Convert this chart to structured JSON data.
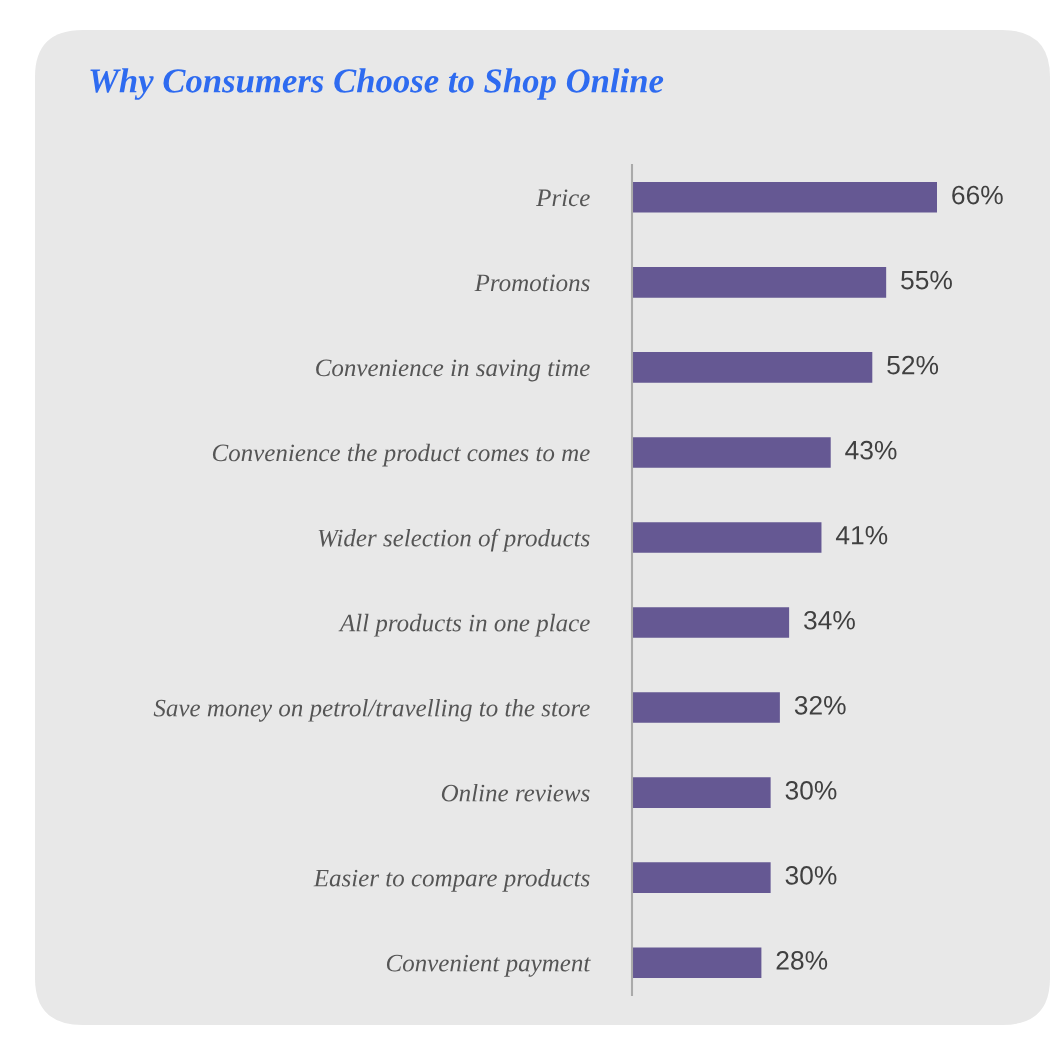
{
  "chart_data": {
    "type": "bar",
    "orientation": "horizontal",
    "title": "Why Consumers Choose to Shop Online",
    "categories": [
      "Price",
      "Promotions",
      "Convenience in saving time",
      "Convenience the product comes to me",
      "Wider selection of products",
      "All products in one place",
      "Save money on petrol/travelling to the store",
      "Online reviews",
      "Easier to compare products",
      "Convenient payment"
    ],
    "values": [
      66,
      55,
      52,
      43,
      41,
      34,
      32,
      30,
      30,
      28
    ],
    "value_labels": [
      "66%",
      "55%",
      "52%",
      "43%",
      "41%",
      "34%",
      "32%",
      "30%",
      "30%",
      "28%"
    ],
    "color": "#655893"
  }
}
